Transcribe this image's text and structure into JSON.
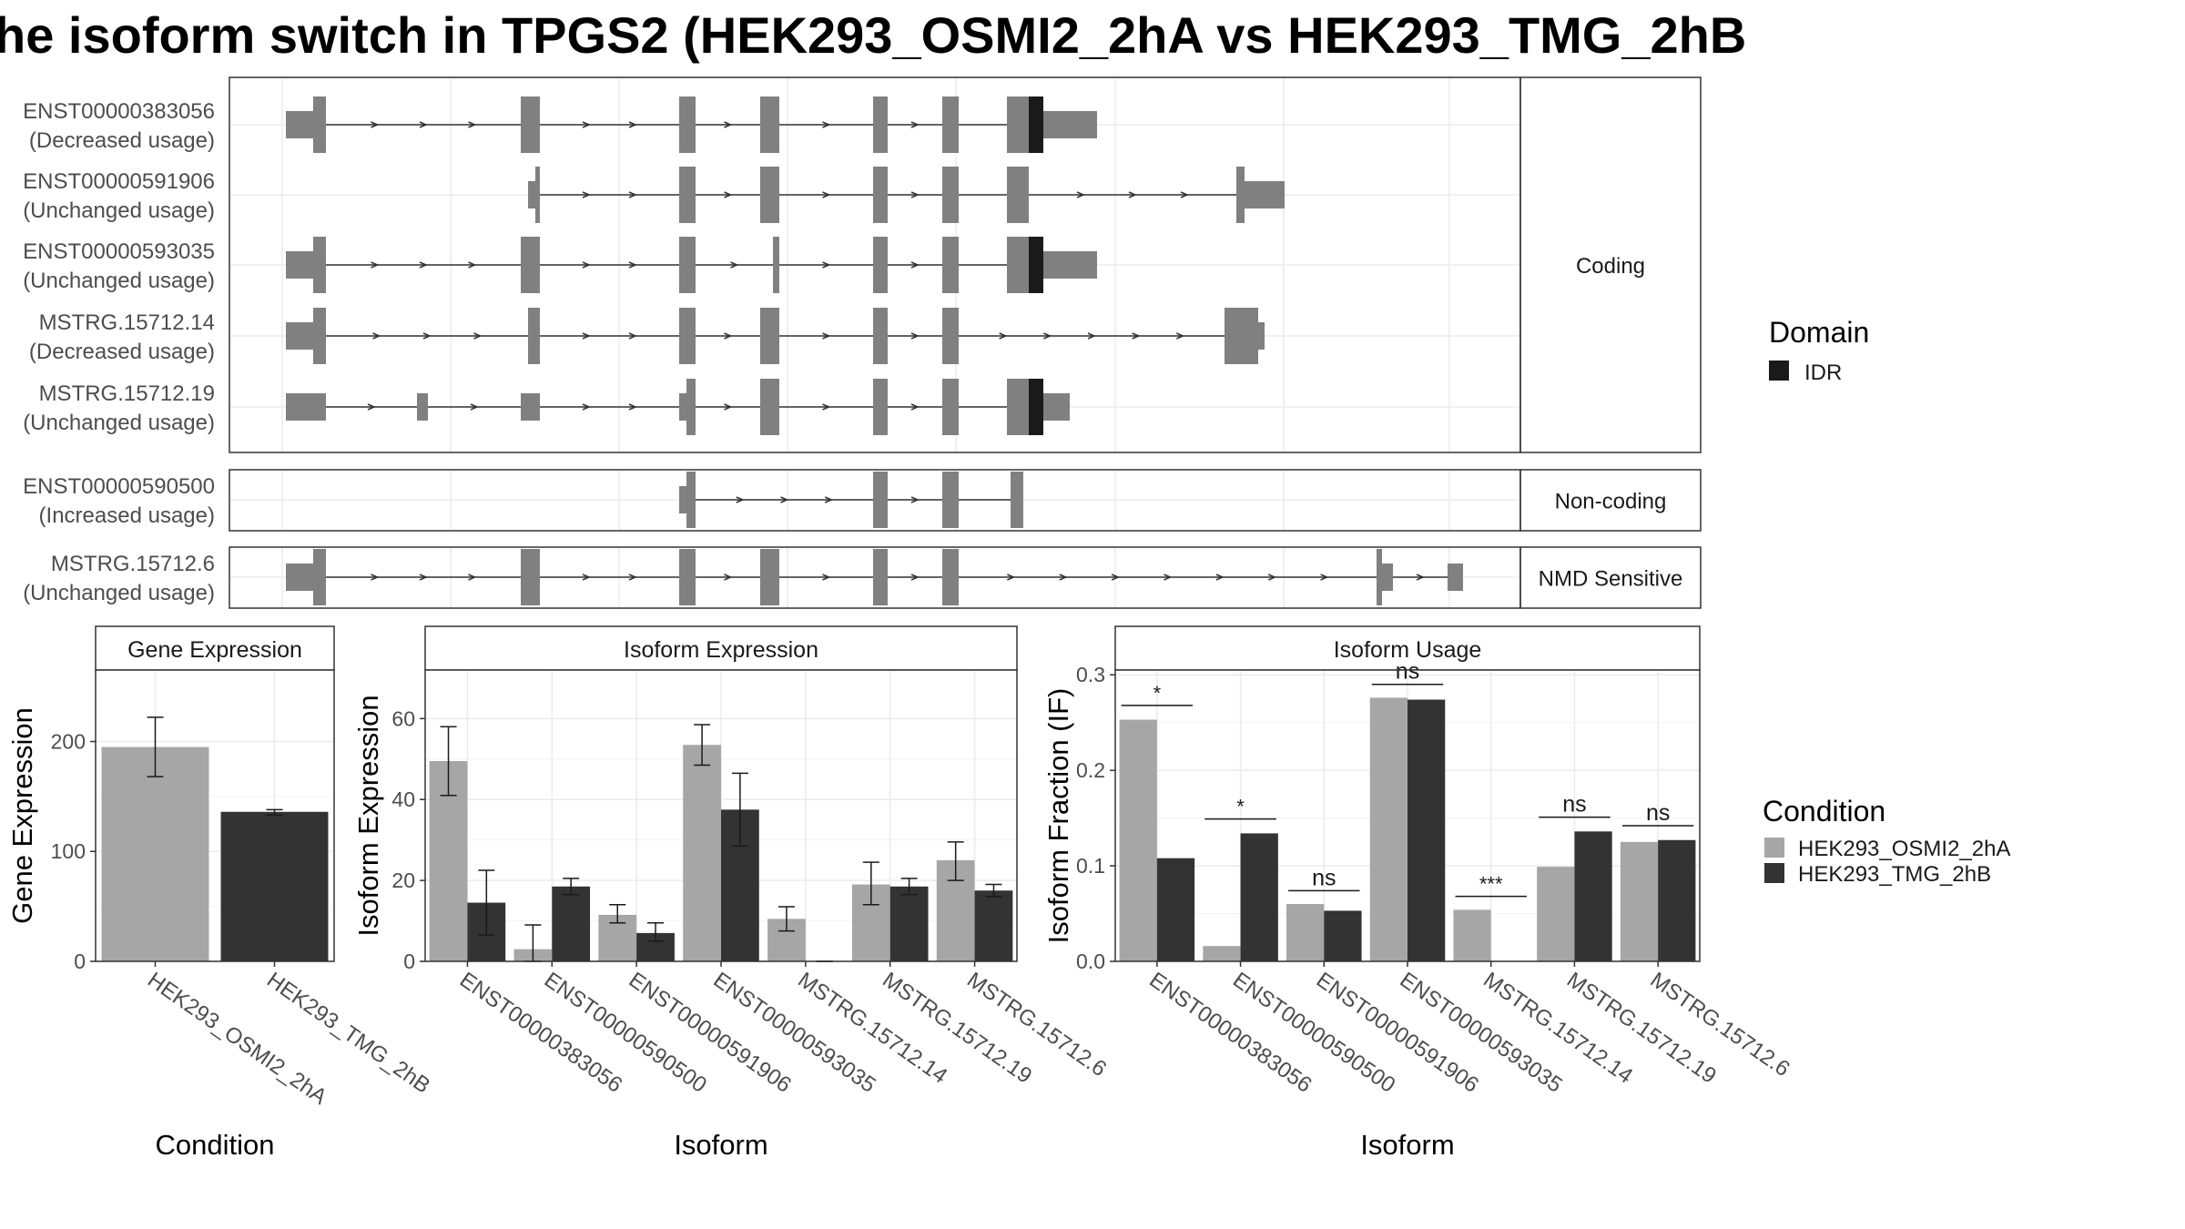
{
  "title": "he isoform switch in TPGS2 (HEK293_OSMI2_2hA vs HEK293_TMG_2hB",
  "colors": {
    "exon": "#808080",
    "idr": "#1a1a1a",
    "condition_a": "#a6a6a6",
    "condition_b": "#333333",
    "grid": "#ebebeb",
    "panel_border": "#333333"
  },
  "structure": {
    "groups": [
      {
        "label": "Coding",
        "transcripts": [
          {
            "id": "ENST00000383056",
            "usage": "(Decreased usage)"
          },
          {
            "id": "ENST00000591906",
            "usage": "(Unchanged usage)"
          },
          {
            "id": "ENST00000593035",
            "usage": "(Unchanged usage)"
          },
          {
            "id": "MSTRG.15712.14",
            "usage": "(Decreased usage)"
          },
          {
            "id": "MSTRG.15712.19",
            "usage": "(Unchanged usage)"
          }
        ]
      },
      {
        "label": "Non-coding",
        "transcripts": [
          {
            "id": "ENST00000590500",
            "usage": "(Increased usage)"
          }
        ]
      },
      {
        "label": "NMD Sensitive",
        "transcripts": [
          {
            "id": "MSTRG.15712.6",
            "usage": "(Unchanged usage)"
          }
        ]
      }
    ]
  },
  "legend_domain": {
    "title": "Domain",
    "items": [
      {
        "label": "IDR"
      }
    ]
  },
  "legend_condition": {
    "title": "Condition",
    "items": [
      {
        "label": "HEK293_OSMI2_2hA"
      },
      {
        "label": "HEK293_TMG_2hB"
      }
    ]
  },
  "chart_data": [
    {
      "type": "bar",
      "title": "Gene Expression",
      "xlabel": "Condition",
      "ylabel": "Gene Expression",
      "ylim": [
        0,
        265
      ],
      "yticks": [
        0,
        100,
        200
      ],
      "grid": true,
      "categories": [
        "HEK293_OSMI2_2hA",
        "HEK293_TMG_2hB"
      ],
      "values": [
        195,
        136
      ],
      "error": [
        [
          168,
          222
        ],
        [
          133,
          138
        ]
      ]
    },
    {
      "type": "bar",
      "title": "Isoform Expression",
      "xlabel": "Isoform",
      "ylabel": "Isoform Expression",
      "ylim": [
        0,
        72
      ],
      "yticks": [
        0,
        20,
        40,
        60
      ],
      "grid": true,
      "categories": [
        "ENST00000383056",
        "ENST00000590500",
        "ENST00000591906",
        "ENST00000593035",
        "MSTRG.15712.14",
        "MSTRG.15712.19",
        "MSTRG.15712.6"
      ],
      "series": [
        {
          "name": "HEK293_OSMI2_2hA",
          "values": [
            49.5,
            3,
            11.5,
            53.5,
            10.5,
            19,
            25
          ],
          "error": [
            [
              41,
              58
            ],
            [
              0,
              9
            ],
            [
              9.5,
              14
            ],
            [
              48.5,
              58.5
            ],
            [
              7.5,
              13.5
            ],
            [
              14,
              24.5
            ],
            [
              20,
              29.5
            ]
          ]
        },
        {
          "name": "HEK293_TMG_2hB",
          "values": [
            14.5,
            18.5,
            7,
            37.5,
            0,
            18.5,
            17.5
          ],
          "error": [
            [
              6.5,
              22.5
            ],
            [
              16.5,
              20.5
            ],
            [
              5,
              9.5
            ],
            [
              28.5,
              46.5
            ],
            [
              0,
              0
            ],
            [
              16.5,
              20.5
            ],
            [
              16,
              19
            ]
          ]
        }
      ]
    },
    {
      "type": "bar",
      "title": "Isoform Usage",
      "xlabel": "Isoform",
      "ylabel": "Isoform Fraction (IF)",
      "ylim": [
        0,
        0.305
      ],
      "yticks": [
        "0.0",
        "0.1",
        "0.2",
        "0.3"
      ],
      "grid": true,
      "categories": [
        "ENST00000383056",
        "ENST00000590500",
        "ENST00000591906",
        "ENST00000593035",
        "MSTRG.15712.14",
        "MSTRG.15712.19",
        "MSTRG.15712.6"
      ],
      "series": [
        {
          "name": "HEK293_OSMI2_2hA",
          "values": [
            0.253,
            0.016,
            0.06,
            0.276,
            0.054,
            0.099,
            0.125
          ]
        },
        {
          "name": "HEK293_TMG_2hB",
          "values": [
            0.108,
            0.134,
            0.053,
            0.274,
            0.0,
            0.136,
            0.127
          ]
        }
      ],
      "significance": [
        "*",
        "*",
        "ns",
        "ns",
        "***",
        "ns",
        "ns"
      ],
      "significance_y": [
        0.268,
        0.149,
        0.074,
        0.29,
        0.068,
        0.151,
        0.142
      ]
    }
  ]
}
